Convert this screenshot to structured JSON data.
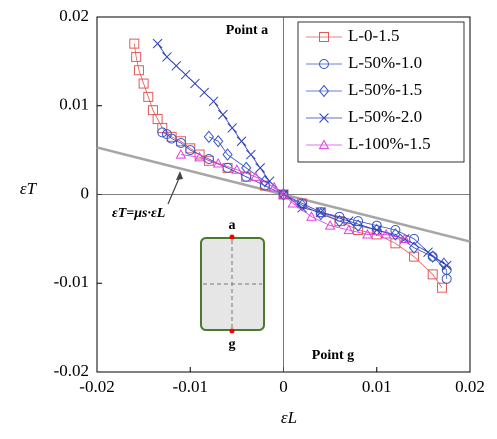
{
  "chart_data": {
    "type": "line",
    "x_label": "εL",
    "y_label": "εT",
    "xlim": [
      -0.02,
      0.02
    ],
    "ylim": [
      -0.02,
      0.02
    ],
    "xticks": [
      -0.02,
      -0.01,
      0,
      0.01,
      0.02
    ],
    "yticks": [
      -0.02,
      -0.01,
      0,
      0.01,
      0.02
    ],
    "legend": "top-right",
    "annotations": {
      "point_a": "Point a",
      "point_g": "Point g",
      "a": "a",
      "g": "g",
      "equation": "εT=μs·εL"
    },
    "reference_line": {
      "x": [
        -0.02,
        0.02
      ],
      "values": [
        0.0053,
        -0.0053
      ],
      "color": "#a6a6a6"
    },
    "series": [
      {
        "name": "L-0-1.5",
        "color": "#e05a5a",
        "marker": "square",
        "x": [
          -0.016,
          -0.0158,
          -0.0155,
          -0.015,
          -0.0145,
          -0.014,
          -0.0135,
          -0.013,
          -0.012,
          -0.011,
          -0.01,
          -0.009,
          -0.008,
          -0.006,
          -0.004,
          -0.002,
          0,
          0.002,
          0.004,
          0.006,
          0.008,
          0.01,
          0.012,
          0.014,
          0.016,
          0.017
        ],
        "values": [
          0.017,
          0.0155,
          0.014,
          0.0125,
          0.011,
          0.0095,
          0.0085,
          0.0075,
          0.0065,
          0.006,
          0.0052,
          0.0045,
          0.0038,
          0.003,
          0.002,
          0.001,
          0,
          -0.001,
          -0.002,
          -0.003,
          -0.004,
          -0.0045,
          -0.0055,
          -0.007,
          -0.009,
          -0.0105
        ]
      },
      {
        "name": "L-50%-1.0",
        "color": "#3a56c8",
        "marker": "circle",
        "x": [
          -0.013,
          -0.0125,
          -0.012,
          -0.011,
          -0.01,
          -0.008,
          -0.006,
          -0.004,
          -0.002,
          0,
          0.002,
          0.004,
          0.006,
          0.008,
          0.01,
          0.012,
          0.014,
          0.016,
          0.0175,
          0.0175
        ],
        "values": [
          0.007,
          0.0068,
          0.0063,
          0.0058,
          0.005,
          0.004,
          0.003,
          0.002,
          0.001,
          0,
          -0.001,
          -0.002,
          -0.0025,
          -0.003,
          -0.0035,
          -0.004,
          -0.005,
          -0.007,
          -0.0085,
          -0.0095
        ]
      },
      {
        "name": "L-50%-1.5",
        "color": "#3a56c8",
        "marker": "diamond",
        "x": [
          -0.008,
          -0.007,
          -0.006,
          -0.004,
          -0.002,
          0,
          0.002,
          0.004,
          0.006,
          0.008,
          0.01,
          0.012,
          0.014,
          0.016,
          0.0172
        ],
        "values": [
          0.0065,
          0.006,
          0.0045,
          0.003,
          0.0015,
          0,
          -0.0012,
          -0.0022,
          -0.003,
          -0.0035,
          -0.004,
          -0.0045,
          -0.006,
          -0.007,
          -0.0078
        ]
      },
      {
        "name": "L-50%-2.0",
        "color": "#2b3fb5",
        "marker": "x",
        "x": [
          -0.0135,
          -0.0125,
          -0.0115,
          -0.0105,
          -0.0095,
          -0.0085,
          -0.0075,
          -0.0065,
          -0.0055,
          -0.0045,
          -0.0035,
          -0.0025,
          -0.0015,
          0,
          0.002,
          0.004,
          0.007,
          0.01,
          0.013,
          0.0155,
          0.0175
        ],
        "values": [
          0.017,
          0.0155,
          0.0145,
          0.0135,
          0.0125,
          0.0115,
          0.0105,
          0.009,
          0.0075,
          0.006,
          0.0045,
          0.003,
          0.0015,
          0,
          -0.0015,
          -0.002,
          -0.003,
          -0.004,
          -0.005,
          -0.0065,
          -0.008
        ]
      },
      {
        "name": "L-100%-1.5",
        "color": "#e040e0",
        "marker": "triangle",
        "x": [
          -0.011,
          -0.009,
          -0.007,
          -0.005,
          -0.003,
          -0.001,
          0,
          0.001,
          0.003,
          0.005,
          0.007,
          0.009,
          0.011,
          0.013
        ],
        "values": [
          0.0045,
          0.0042,
          0.0035,
          0.0028,
          0.002,
          0.0008,
          0,
          -0.001,
          -0.0025,
          -0.0035,
          -0.004,
          -0.0045,
          -0.0045,
          -0.005
        ]
      }
    ]
  }
}
